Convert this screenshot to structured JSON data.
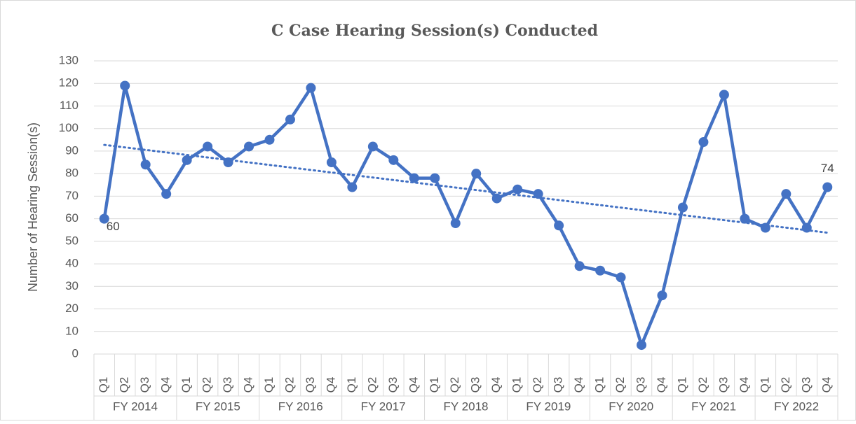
{
  "chart_data": {
    "type": "line",
    "title": "C Case Hearing Session(s) Conducted",
    "y_label": "Number of Hearing Session(s)",
    "categories": [
      "Q1",
      "Q2",
      "Q3",
      "Q4",
      "Q1",
      "Q2",
      "Q3",
      "Q4",
      "Q1",
      "Q2",
      "Q3",
      "Q4",
      "Q1",
      "Q2",
      "Q3",
      "Q4",
      "Q1",
      "Q2",
      "Q3",
      "Q4",
      "Q1",
      "Q2",
      "Q3",
      "Q4",
      "Q1",
      "Q2",
      "Q3",
      "Q4",
      "Q1",
      "Q2",
      "Q3",
      "Q4",
      "Q1",
      "Q2",
      "Q3",
      "Q4"
    ],
    "groups": [
      "FY 2014",
      "FY 2015",
      "FY 2016",
      "FY 2017",
      "FY 2018",
      "FY 2019",
      "FY 2020",
      "FY 2021",
      "FY 2022"
    ],
    "series": [
      {
        "name": "C Case Hearing Session(s)",
        "color": "#4472c4",
        "values": [
          60,
          119,
          84,
          71,
          86,
          92,
          85,
          92,
          95,
          104,
          118,
          85,
          74,
          92,
          86,
          78,
          78,
          58,
          80,
          69,
          73,
          71,
          57,
          39,
          37,
          34,
          4,
          26,
          65,
          94,
          115,
          60,
          56,
          71,
          56,
          74
        ]
      }
    ],
    "trendline": {
      "kind": "linear",
      "color": "#4472c4"
    },
    "ylim": [
      0,
      130
    ],
    "yticks": [
      0,
      10,
      20,
      30,
      40,
      50,
      60,
      70,
      80,
      90,
      100,
      110,
      120,
      130
    ],
    "grid": true
  }
}
